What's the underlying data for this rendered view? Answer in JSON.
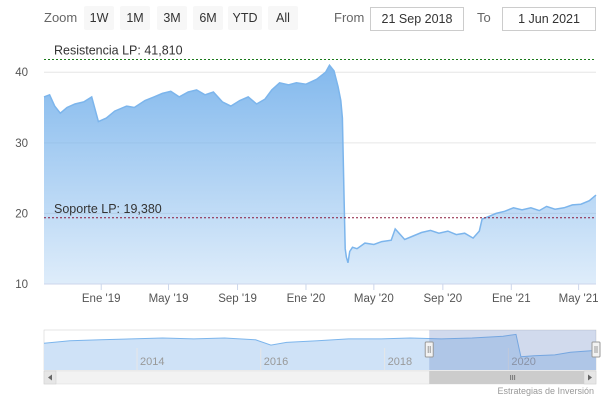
{
  "toolbar": {
    "zoom_label": "Zoom",
    "buttons": [
      "1W",
      "1M",
      "3M",
      "6M",
      "YTD",
      "All"
    ],
    "from_label": "From",
    "from_value": "21 Sep 2018",
    "to_label": "To",
    "to_value": "1 Jun 2021"
  },
  "credits": "Estrategias de Inversión",
  "chart_data": {
    "type": "area",
    "series": [
      {
        "values": [
          [
            "2018-09-21",
            36.5
          ],
          [
            "2018-10-01",
            36.8
          ],
          [
            "2018-10-10",
            35.2
          ],
          [
            "2018-10-20",
            34.2
          ],
          [
            "2018-11-01",
            35.0
          ],
          [
            "2018-11-15",
            35.5
          ],
          [
            "2018-12-01",
            35.8
          ],
          [
            "2018-12-15",
            36.5
          ],
          [
            "2018-12-27",
            33.0
          ],
          [
            "2019-01-10",
            33.5
          ],
          [
            "2019-01-25",
            34.5
          ],
          [
            "2019-02-15",
            35.2
          ],
          [
            "2019-03-01",
            35.0
          ],
          [
            "2019-03-20",
            36.0
          ],
          [
            "2019-04-05",
            36.5
          ],
          [
            "2019-04-20",
            37.0
          ],
          [
            "2019-05-05",
            37.3
          ],
          [
            "2019-05-20",
            36.5
          ],
          [
            "2019-06-05",
            37.2
          ],
          [
            "2019-06-20",
            37.5
          ],
          [
            "2019-07-05",
            36.8
          ],
          [
            "2019-07-20",
            37.2
          ],
          [
            "2019-08-05",
            35.8
          ],
          [
            "2019-08-20",
            35.2
          ],
          [
            "2019-09-05",
            36.0
          ],
          [
            "2019-09-20",
            36.5
          ],
          [
            "2019-10-05",
            35.5
          ],
          [
            "2019-10-20",
            36.2
          ],
          [
            "2019-11-01",
            37.5
          ],
          [
            "2019-11-15",
            38.5
          ],
          [
            "2019-12-01",
            38.2
          ],
          [
            "2019-12-15",
            38.5
          ],
          [
            "2020-01-01",
            38.3
          ],
          [
            "2020-01-20",
            39.0
          ],
          [
            "2020-02-05",
            40.0
          ],
          [
            "2020-02-12",
            41.0
          ],
          [
            "2020-02-20",
            40.2
          ],
          [
            "2020-02-27",
            38.0
          ],
          [
            "2020-03-03",
            36.0
          ],
          [
            "2020-03-06",
            33.5
          ],
          [
            "2020-03-09",
            22.0
          ],
          [
            "2020-03-11",
            15.0
          ],
          [
            "2020-03-13",
            13.8
          ],
          [
            "2020-03-16",
            13.0
          ],
          [
            "2020-03-19",
            14.6
          ],
          [
            "2020-03-24",
            15.2
          ],
          [
            "2020-04-01",
            15.0
          ],
          [
            "2020-04-15",
            15.8
          ],
          [
            "2020-05-01",
            15.6
          ],
          [
            "2020-05-15",
            16.0
          ],
          [
            "2020-06-01",
            16.2
          ],
          [
            "2020-06-08",
            17.8
          ],
          [
            "2020-06-15",
            17.2
          ],
          [
            "2020-06-25",
            16.3
          ],
          [
            "2020-07-10",
            16.8
          ],
          [
            "2020-07-25",
            17.3
          ],
          [
            "2020-08-10",
            17.6
          ],
          [
            "2020-08-25",
            17.2
          ],
          [
            "2020-09-10",
            17.5
          ],
          [
            "2020-09-25",
            17.0
          ],
          [
            "2020-10-10",
            17.2
          ],
          [
            "2020-10-25",
            16.5
          ],
          [
            "2020-11-05",
            17.5
          ],
          [
            "2020-11-10",
            19.2
          ],
          [
            "2020-11-20",
            19.5
          ],
          [
            "2020-12-05",
            20.0
          ],
          [
            "2020-12-20",
            20.3
          ],
          [
            "2021-01-05",
            20.8
          ],
          [
            "2021-01-20",
            20.5
          ],
          [
            "2021-02-05",
            20.8
          ],
          [
            "2021-02-20",
            20.4
          ],
          [
            "2021-03-05",
            21.0
          ],
          [
            "2021-03-20",
            20.6
          ],
          [
            "2021-04-05",
            20.8
          ],
          [
            "2021-04-20",
            21.2
          ],
          [
            "2021-05-05",
            21.3
          ],
          [
            "2021-05-20",
            21.8
          ],
          [
            "2021-06-01",
            22.6
          ]
        ]
      }
    ],
    "xlabels": [
      "Ene '19",
      "May '19",
      "Sep '19",
      "Ene '20",
      "May '20",
      "Sep '20",
      "Ene '21",
      "May '21"
    ],
    "xtick_dates": [
      "2019-01-01",
      "2019-05-01",
      "2019-09-01",
      "2020-01-01",
      "2020-05-01",
      "2020-09-01",
      "2021-01-01",
      "2021-05-01"
    ],
    "yticks": [
      10,
      20,
      30,
      40
    ],
    "ylim": [
      10,
      44
    ],
    "xlim": [
      "2018-09-21",
      "2021-06-01"
    ],
    "lines": [
      {
        "label": "Resistencia LP: 41,810",
        "value": 41.81,
        "color": "#1a7a1a"
      },
      {
        "label": "Soporte LP: 19,380",
        "value": 19.38,
        "color": "#8b1a3a"
      }
    ],
    "navigator": {
      "labels": [
        "2014",
        "2016",
        "2018",
        "2020"
      ],
      "label_dates": [
        "2014-01-01",
        "2016-01-01",
        "2018-01-01",
        "2020-01-01"
      ],
      "xlim": [
        "2012-07-01",
        "2021-06-01"
      ],
      "values": [
        [
          "2012-07-01",
          30
        ],
        [
          "2012-12-01",
          33
        ],
        [
          "2013-06-01",
          34
        ],
        [
          "2013-12-01",
          35
        ],
        [
          "2014-06-01",
          36
        ],
        [
          "2014-12-01",
          35
        ],
        [
          "2015-06-01",
          36
        ],
        [
          "2015-12-01",
          34
        ],
        [
          "2016-03-01",
          28
        ],
        [
          "2016-06-01",
          31
        ],
        [
          "2016-12-01",
          33
        ],
        [
          "2017-06-01",
          35
        ],
        [
          "2017-12-01",
          35
        ],
        [
          "2018-06-01",
          36
        ],
        [
          "2018-12-01",
          35
        ],
        [
          "2019-06-01",
          36
        ],
        [
          "2019-12-01",
          38
        ],
        [
          "2020-02-15",
          40
        ],
        [
          "2020-03-15",
          15
        ],
        [
          "2020-06-01",
          16
        ],
        [
          "2020-10-01",
          17
        ],
        [
          "2021-01-01",
          20
        ],
        [
          "2021-06-01",
          22
        ]
      ],
      "ylim": [
        0,
        45
      ],
      "selected": [
        "2018-09-21",
        "2021-06-01"
      ]
    },
    "colors": {
      "line": "#7cb5ec",
      "area_top": "#7cb5ec",
      "area_bottom": "#ffffff",
      "grid": "#e6e6e6"
    }
  }
}
